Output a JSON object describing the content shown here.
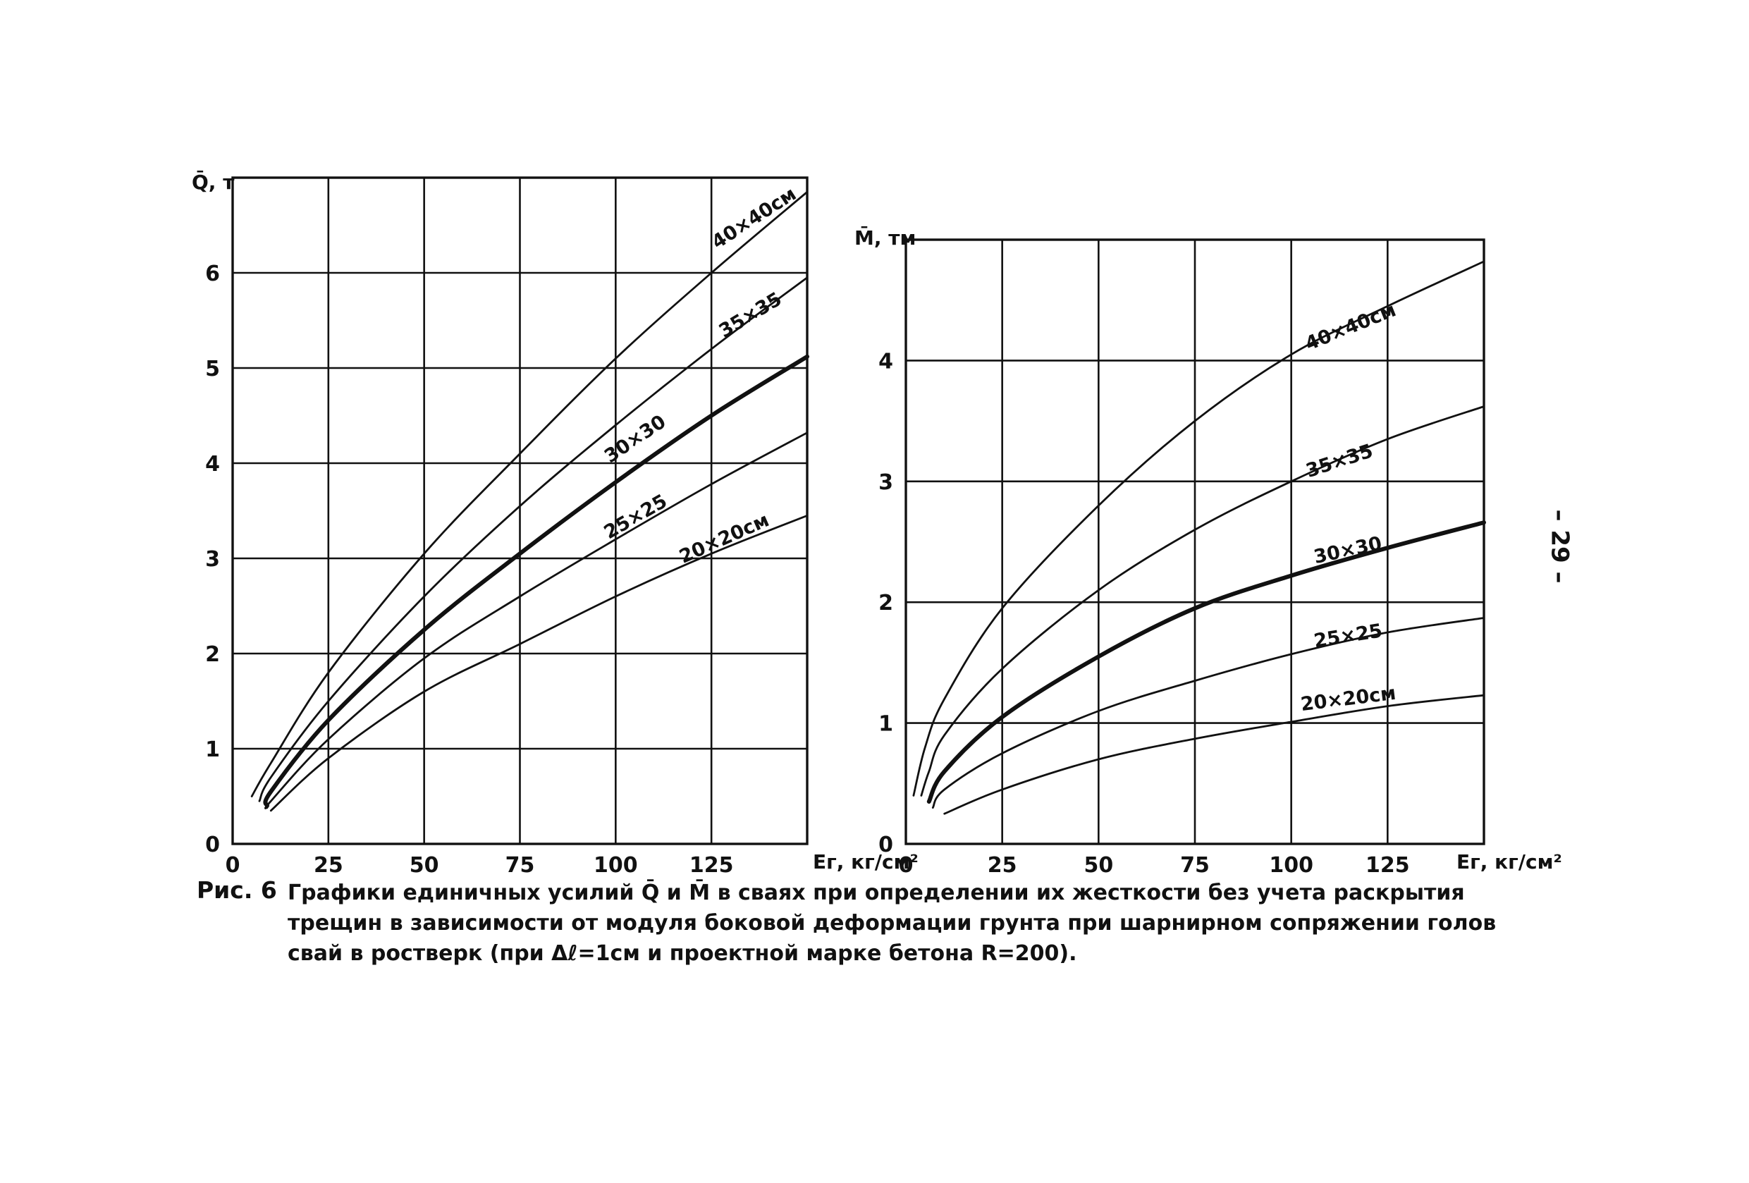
{
  "page_number": "– 29 –",
  "caption": {
    "lead": "Рис. 6",
    "line1": "Графики единичных усилий Q̄ и M̄ в сваях при определении их жесткости без учета раскрытия",
    "line2": "трещин в зависимости от модуля боковой деформации грунта при шарнирном сопряжении голов",
    "line3": "свай в ростверк (при Δℓ=1см и проектной марке бетона R=200)."
  },
  "chart_data": [
    {
      "type": "line",
      "ylabel": "Q̄, т",
      "xlabel": "Eг, кг/см²",
      "xlim": [
        0,
        150
      ],
      "ylim": [
        0,
        7
      ],
      "x_ticks": [
        0,
        25,
        50,
        75,
        100,
        125
      ],
      "x_tick_labels": [
        "0",
        "25",
        "50",
        "75",
        "100",
        "125"
      ],
      "y_ticks": [
        0,
        1,
        2,
        3,
        4,
        5,
        6
      ],
      "y_tick_labels": [
        "0",
        "1",
        "2",
        "3",
        "4",
        "5",
        "6"
      ],
      "grid": true,
      "series": [
        {
          "name": "40×40см",
          "bold": false,
          "x": [
            5,
            10,
            25,
            50,
            75,
            100,
            125,
            150
          ],
          "y": [
            0.5,
            0.85,
            1.8,
            3.05,
            4.1,
            5.1,
            6.0,
            6.85
          ]
        },
        {
          "name": "35×35",
          "bold": false,
          "x": [
            7,
            10,
            25,
            50,
            75,
            100,
            125,
            150
          ],
          "y": [
            0.45,
            0.7,
            1.5,
            2.6,
            3.55,
            4.4,
            5.2,
            5.95
          ]
        },
        {
          "name": "30×30",
          "bold": true,
          "x": [
            9,
            10,
            25,
            50,
            75,
            100,
            125,
            150
          ],
          "y": [
            0.4,
            0.55,
            1.3,
            2.25,
            3.05,
            3.8,
            4.5,
            5.12
          ]
        },
        {
          "name": "25×25",
          "bold": false,
          "x": [
            9,
            10,
            25,
            50,
            75,
            100,
            125,
            150
          ],
          "y": [
            0.38,
            0.45,
            1.1,
            1.95,
            2.6,
            3.2,
            3.78,
            4.32
          ]
        },
        {
          "name": "20×20см",
          "bold": false,
          "x": [
            10,
            25,
            50,
            75,
            100,
            125,
            150
          ],
          "y": [
            0.35,
            0.9,
            1.6,
            2.1,
            2.6,
            3.05,
            3.45
          ]
        }
      ]
    },
    {
      "type": "line",
      "ylabel": "M̄, тм",
      "xlabel": "Eг, кг/см²",
      "xlim": [
        0,
        150
      ],
      "ylim": [
        0,
        5
      ],
      "x_ticks": [
        0,
        25,
        50,
        75,
        100,
        125
      ],
      "x_tick_labels": [
        "0",
        "25",
        "50",
        "75",
        "100",
        "125"
      ],
      "y_ticks": [
        0,
        1,
        2,
        3,
        4
      ],
      "y_tick_labels": [
        "0",
        "1",
        "2",
        "3",
        "4"
      ],
      "grid": true,
      "series": [
        {
          "name": "40×40см",
          "bold": false,
          "x": [
            2,
            5,
            10,
            25,
            50,
            75,
            100,
            125,
            150
          ],
          "y": [
            0.4,
            0.8,
            1.2,
            1.95,
            2.8,
            3.5,
            4.05,
            4.45,
            4.82
          ]
        },
        {
          "name": "35×35",
          "bold": false,
          "x": [
            4,
            6,
            10,
            25,
            50,
            75,
            100,
            125,
            150
          ],
          "y": [
            0.4,
            0.6,
            0.9,
            1.45,
            2.1,
            2.6,
            3.0,
            3.35,
            3.62
          ]
        },
        {
          "name": "30×30",
          "bold": true,
          "x": [
            6,
            10,
            25,
            50,
            75,
            100,
            125,
            150
          ],
          "y": [
            0.35,
            0.6,
            1.05,
            1.55,
            1.95,
            2.22,
            2.45,
            2.66
          ]
        },
        {
          "name": "25×25",
          "bold": false,
          "x": [
            7,
            10,
            25,
            50,
            75,
            100,
            125,
            150
          ],
          "y": [
            0.3,
            0.45,
            0.75,
            1.1,
            1.35,
            1.57,
            1.75,
            1.87
          ]
        },
        {
          "name": "20×20см",
          "bold": false,
          "x": [
            10,
            25,
            50,
            75,
            100,
            125,
            150
          ],
          "y": [
            0.25,
            0.45,
            0.7,
            0.87,
            1.01,
            1.14,
            1.23
          ]
        }
      ]
    }
  ]
}
